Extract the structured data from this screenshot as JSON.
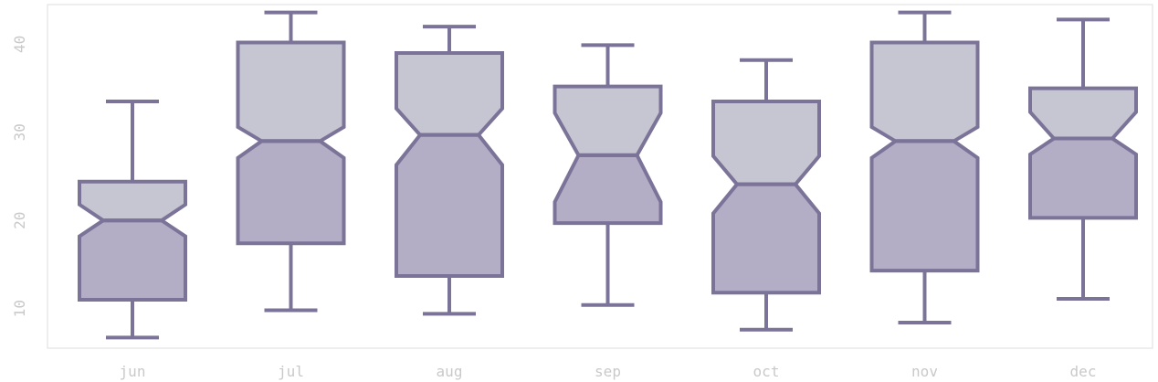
{
  "chart_data": {
    "type": "boxplot",
    "notched": true,
    "title": "",
    "xlabel": "",
    "ylabel": "",
    "categories": [
      "jun",
      "jul",
      "aug",
      "sep",
      "oct",
      "nov",
      "dec"
    ],
    "ylim": [
      5.5,
      44.5
    ],
    "yticks": [
      10,
      20,
      30,
      40
    ],
    "ytick_labels": [
      "10",
      "20",
      "30",
      "40"
    ],
    "grid": false,
    "legend": "none",
    "boxes": [
      {
        "category": "jun",
        "whisker_low": 6.7,
        "q1": 11.0,
        "median": 20.0,
        "q3": 24.4,
        "whisker_high": 33.5,
        "notch_low": 18.2,
        "notch_high": 21.8
      },
      {
        "category": "jul",
        "whisker_low": 9.8,
        "q1": 17.4,
        "median": 29.0,
        "q3": 40.2,
        "whisker_high": 43.6,
        "notch_low": 27.1,
        "notch_high": 30.6
      },
      {
        "category": "aug",
        "whisker_low": 9.4,
        "q1": 13.7,
        "median": 29.7,
        "q3": 39.0,
        "whisker_high": 42.0,
        "notch_low": 26.3,
        "notch_high": 32.7
      },
      {
        "category": "sep",
        "whisker_low": 10.4,
        "q1": 19.7,
        "median": 27.4,
        "q3": 35.2,
        "whisker_high": 39.9,
        "notch_low": 22.1,
        "notch_high": 32.2
      },
      {
        "category": "oct",
        "whisker_low": 7.6,
        "q1": 11.8,
        "median": 24.1,
        "q3": 33.5,
        "whisker_high": 38.2,
        "notch_low": 20.8,
        "notch_high": 27.3
      },
      {
        "category": "nov",
        "whisker_low": 8.4,
        "q1": 14.3,
        "median": 29.0,
        "q3": 40.2,
        "whisker_high": 43.6,
        "notch_low": 27.1,
        "notch_high": 30.6
      },
      {
        "category": "dec",
        "whisker_low": 11.1,
        "q1": 20.3,
        "median": 29.3,
        "q3": 35.0,
        "whisker_high": 42.8,
        "notch_low": 27.5,
        "notch_high": 32.3
      }
    ],
    "colors": {
      "stroke": "#7b7498",
      "lower_fill": "#b3adc6",
      "upper_fill": "#c6c5d2",
      "frame": "#dddddd",
      "tick_text": "#c9c9c9"
    }
  }
}
